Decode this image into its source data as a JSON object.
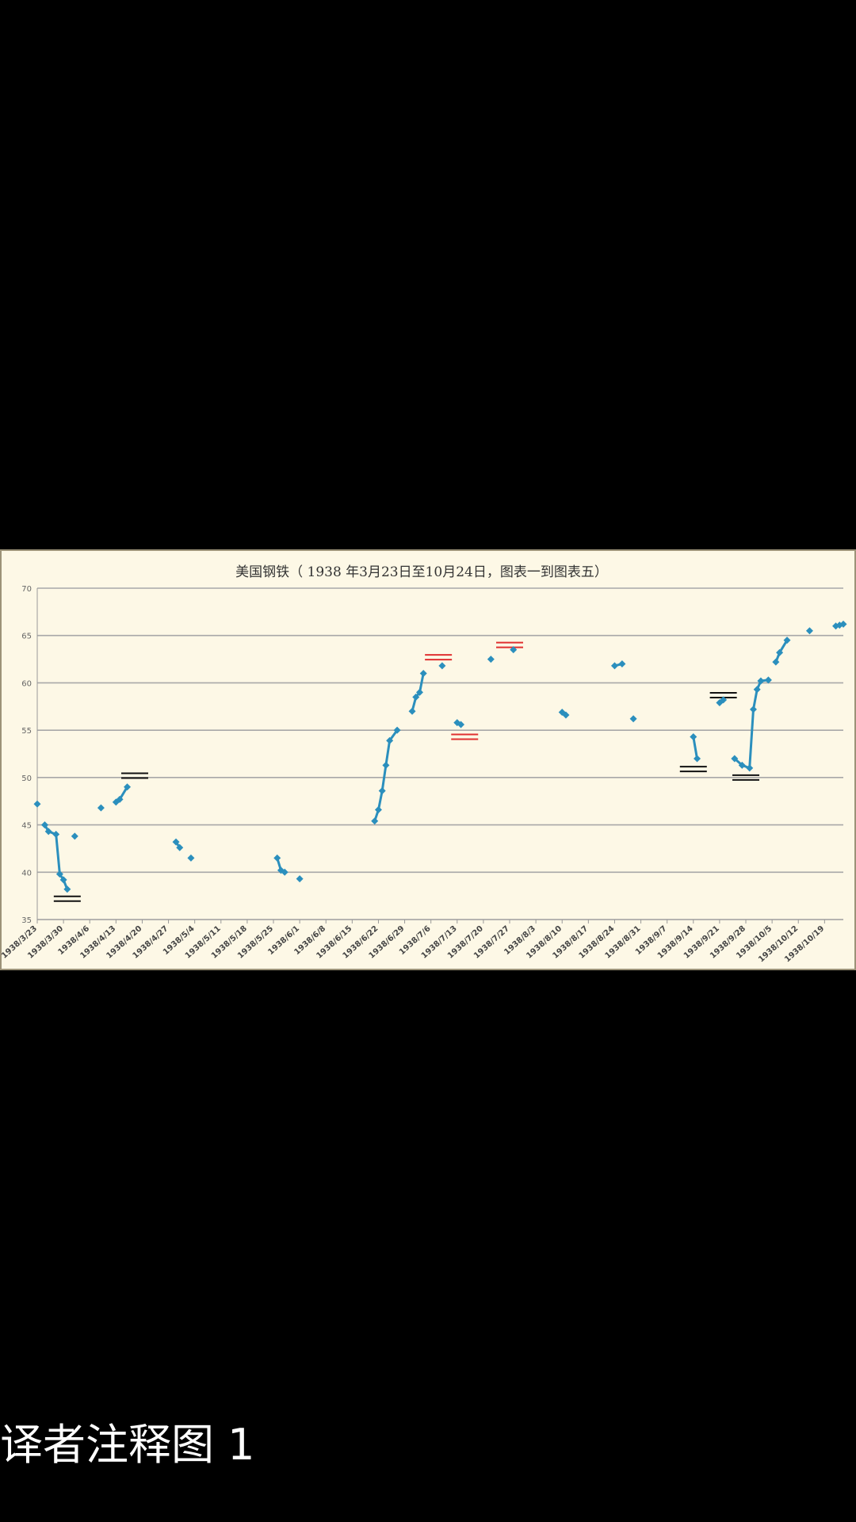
{
  "caption": "译者注释图 1",
  "chart_data": {
    "type": "line",
    "title": "美国钢铁（ 1938 年3月23日至10月24日，图表一到图表五）",
    "xlabel": "",
    "ylabel": "",
    "ylim": [
      35,
      70
    ],
    "yticks": [
      35,
      40,
      45,
      50,
      55,
      60,
      65,
      70
    ],
    "xlim": [
      "1938-03-23",
      "1938-10-24"
    ],
    "xticks": [
      "1938/3/23",
      "1938/3/30",
      "1938/4/6",
      "1938/4/13",
      "1938/4/20",
      "1938/4/27",
      "1938/5/4",
      "1938/5/11",
      "1938/5/18",
      "1938/5/25",
      "1938/6/1",
      "1938/6/8",
      "1938/6/15",
      "1938/6/22",
      "1938/6/29",
      "1938/7/6",
      "1938/7/13",
      "1938/7/20",
      "1938/7/27",
      "1938/8/3",
      "1938/8/10",
      "1938/8/17",
      "1938/8/24",
      "1938/8/31",
      "1938/9/7",
      "1938/9/14",
      "1938/9/21",
      "1938/9/28",
      "1938/10/5",
      "1938/10/12",
      "1938/10/19"
    ],
    "grid": true,
    "colors": {
      "series": "#2b8fbd",
      "black_marker": "#111111",
      "red_marker": "#e03030",
      "grid": "#a8a8a8",
      "background": "#fdf8e6"
    },
    "segments": [
      [
        [
          "1938-03-23",
          47.2
        ]
      ],
      [
        [
          "1938-03-25",
          45.0
        ],
        [
          "1938-03-26",
          44.3
        ],
        [
          "1938-03-28",
          44.0
        ],
        [
          "1938-03-29",
          39.8
        ],
        [
          "1938-03-30",
          39.2
        ],
        [
          "1938-03-31",
          38.2
        ]
      ],
      [
        [
          "1938-04-02",
          43.8
        ]
      ],
      [
        [
          "1938-04-09",
          46.8
        ]
      ],
      [
        [
          "1938-04-13",
          47.4
        ],
        [
          "1938-04-14",
          47.7
        ],
        [
          "1938-04-16",
          49.0
        ]
      ],
      [
        [
          "1938-04-29",
          43.2
        ],
        [
          "1938-04-30",
          42.6
        ]
      ],
      [
        [
          "1938-05-03",
          41.5
        ]
      ],
      [
        [
          "1938-05-26",
          41.5
        ],
        [
          "1938-05-27",
          40.2
        ],
        [
          "1938-05-28",
          40.0
        ]
      ],
      [
        [
          "1938-06-01",
          39.3
        ]
      ],
      [
        [
          "1938-06-21",
          45.4
        ],
        [
          "1938-06-22",
          46.6
        ],
        [
          "1938-06-23",
          48.6
        ],
        [
          "1938-06-24",
          51.3
        ],
        [
          "1938-06-25",
          53.9
        ],
        [
          "1938-06-27",
          55.0
        ]
      ],
      [
        [
          "1938-07-01",
          57.0
        ],
        [
          "1938-07-02",
          58.5
        ],
        [
          "1938-07-03",
          59.0
        ],
        [
          "1938-07-04",
          61.0
        ]
      ],
      [
        [
          "1938-07-09",
          61.8
        ]
      ],
      [
        [
          "1938-07-13",
          55.8
        ],
        [
          "1938-07-14",
          55.6
        ]
      ],
      [
        [
          "1938-07-22",
          62.5
        ]
      ],
      [
        [
          "1938-07-28",
          63.5
        ]
      ],
      [
        [
          "1938-08-10",
          56.9
        ],
        [
          "1938-08-11",
          56.6
        ]
      ],
      [
        [
          "1938-08-24",
          61.8
        ],
        [
          "1938-08-26",
          62.0
        ]
      ],
      [
        [
          "1938-08-29",
          56.2
        ]
      ],
      [
        [
          "1938-09-14",
          54.3
        ],
        [
          "1938-09-15",
          52.0
        ]
      ],
      [
        [
          "1938-09-21",
          57.9
        ],
        [
          "1938-09-22",
          58.2
        ]
      ],
      [
        [
          "1938-09-25",
          52.0
        ],
        [
          "1938-09-27",
          51.3
        ],
        [
          "1938-09-29",
          51.0
        ],
        [
          "1938-09-30",
          57.2
        ],
        [
          "1938-10-01",
          59.3
        ],
        [
          "1938-10-02",
          60.2
        ],
        [
          "1938-10-04",
          60.3
        ]
      ],
      [
        [
          "1938-10-06",
          62.2
        ],
        [
          "1938-10-07",
          63.2
        ],
        [
          "1938-10-09",
          64.5
        ]
      ],
      [
        [
          "1938-10-15",
          65.5
        ]
      ],
      [
        [
          "1938-10-22",
          66.0
        ],
        [
          "1938-10-23",
          66.1
        ],
        [
          "1938-10-24",
          66.2
        ]
      ]
    ],
    "black_markers": [
      [
        "1938-03-31",
        37.2
      ],
      [
        "1938-04-18",
        50.2
      ],
      [
        "1938-09-14",
        50.9
      ],
      [
        "1938-09-22",
        58.7
      ],
      [
        "1938-09-28",
        50.0
      ]
    ],
    "red_markers": [
      [
        "1938-07-08",
        62.7
      ],
      [
        "1938-07-15",
        54.3
      ],
      [
        "1938-07-27",
        64.0
      ]
    ]
  }
}
